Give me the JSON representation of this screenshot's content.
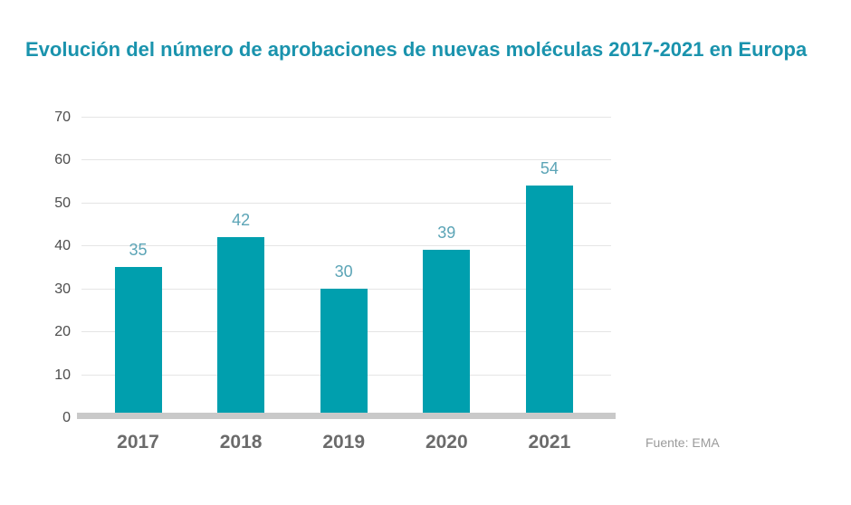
{
  "page": {
    "title": "Evolución del número de aprobaciones de nuevas moléculas 2017-2021 en Europa",
    "source": "Fuente: EMA"
  },
  "chart_data": {
    "type": "bar",
    "title": "Evolución del número de aprobaciones de nuevas moléculas 2017-2021 en Europa",
    "categories": [
      "2017",
      "2018",
      "2019",
      "2020",
      "2021"
    ],
    "values": [
      35,
      42,
      30,
      39,
      54
    ],
    "xlabel": "",
    "ylabel": "",
    "ylim": [
      0,
      70
    ],
    "yticks": [
      0,
      10,
      20,
      30,
      40,
      50,
      60,
      70
    ],
    "grid": true,
    "legend": "none",
    "source": "Fuente: EMA",
    "colors": {
      "bar": "#009fae",
      "title": "#1a93ad",
      "value_label": "#5ba4b6",
      "y_tick_label": "#4d4d4d",
      "x_tick_label": "#6b6b6b",
      "gridline": "#e5e5e5",
      "baseline": "#c9c9c9",
      "source_text": "#9b9b9b"
    }
  }
}
